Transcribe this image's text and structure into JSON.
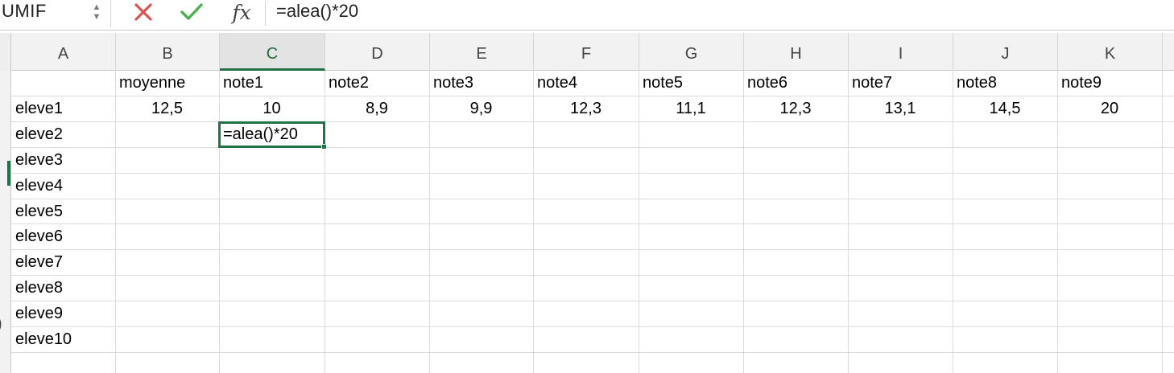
{
  "formula_bar": {
    "name_box": "UMIF",
    "stepper_up": "▲",
    "stepper_down": "▼",
    "cancel_icon": "x-icon",
    "confirm_icon": "check-icon",
    "fx_label": "fx",
    "formula": "=alea()*20"
  },
  "columns": [
    "A",
    "B",
    "C",
    "D",
    "E",
    "F",
    "G",
    "H",
    "I",
    "J",
    "K"
  ],
  "selected_column": "C",
  "header_row": {
    "A": "",
    "B": "moyenne",
    "C": "note1",
    "D": "note2",
    "E": "note3",
    "F": "note4",
    "G": "note5",
    "H": "note6",
    "I": "note7",
    "J": "note8",
    "K": "note9"
  },
  "eleve1_row": {
    "A": "eleve1",
    "B": "12,5",
    "C": "10",
    "D": "8,9",
    "E": "9,9",
    "F": "12,3",
    "G": "11,1",
    "H": "12,3",
    "I": "13,1",
    "J": "14,5",
    "K": "20"
  },
  "students": [
    "eleve2",
    "eleve3",
    "eleve4",
    "eleve5",
    "eleve6",
    "eleve7",
    "eleve8",
    "eleve9",
    "eleve10"
  ],
  "active_cell": {
    "ref": "C4",
    "edit_text": "=alea()*20"
  },
  "row_number_fragment": ")",
  "colors": {
    "accent": "#217346",
    "grid_line": "#dcdcdc",
    "header_bg": "#f2f2f2"
  }
}
